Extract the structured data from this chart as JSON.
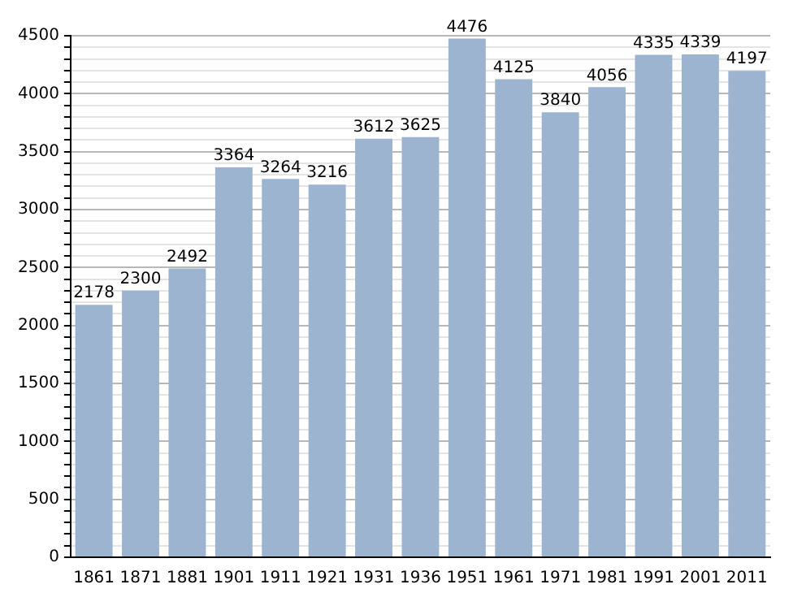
{
  "chart_data": {
    "type": "bar",
    "categories": [
      "1861",
      "1871",
      "1881",
      "1901",
      "1911",
      "1921",
      "1931",
      "1936",
      "1951",
      "1961",
      "1971",
      "1981",
      "1991",
      "2001",
      "2011"
    ],
    "values": [
      2178,
      2300,
      2492,
      3364,
      3264,
      3216,
      3612,
      3625,
      4476,
      4125,
      3840,
      4056,
      4335,
      4339,
      4197
    ],
    "color": "#9db4d0",
    "data_labels": true,
    "grid": "y",
    "ylim": [
      0,
      4500
    ],
    "yticks": [
      0,
      {
        "value": 100,
        "label": null
      },
      {
        "value": 200,
        "label": null
      },
      {
        "value": 300,
        "label": null
      },
      {
        "value": 400,
        "label": null
      },
      500,
      {
        "value": 600,
        "label": null
      },
      {
        "value": 700,
        "label": null
      },
      {
        "value": 800,
        "label": null
      },
      {
        "value": 900,
        "label": null
      },
      1000,
      {
        "value": 1100,
        "label": null
      },
      {
        "value": 1200,
        "label": null
      },
      {
        "value": 1300,
        "label": null
      },
      {
        "value": 1400,
        "label": null
      },
      1500,
      {
        "value": 1600,
        "label": null
      },
      {
        "value": 1700,
        "label": null
      },
      {
        "value": 1800,
        "label": null
      },
      {
        "value": 1900,
        "label": null
      },
      2000,
      {
        "value": 2100,
        "label": null
      },
      {
        "value": 2200,
        "label": null
      },
      {
        "value": 2300,
        "label": null
      },
      {
        "value": 2400,
        "label": null
      },
      2500,
      {
        "value": 2600,
        "label": null
      },
      {
        "value": 2700,
        "label": null
      },
      {
        "value": 2800,
        "label": null
      },
      {
        "value": 2900,
        "label": null
      },
      3000,
      {
        "value": 3100,
        "label": null
      },
      {
        "value": 3200,
        "label": null
      },
      {
        "value": 3300,
        "label": null
      },
      {
        "value": 3400,
        "label": null
      },
      3500,
      {
        "value": 3600,
        "label": null
      },
      {
        "value": 3700,
        "label": null
      },
      {
        "value": 3800,
        "label": null
      },
      {
        "value": 3900,
        "label": null
      },
      4000,
      {
        "value": 4100,
        "label": null
      },
      {
        "value": 4200,
        "label": null
      },
      {
        "value": 4300,
        "label": null
      },
      {
        "value": 4400,
        "label": null
      },
      4500
    ]
  }
}
